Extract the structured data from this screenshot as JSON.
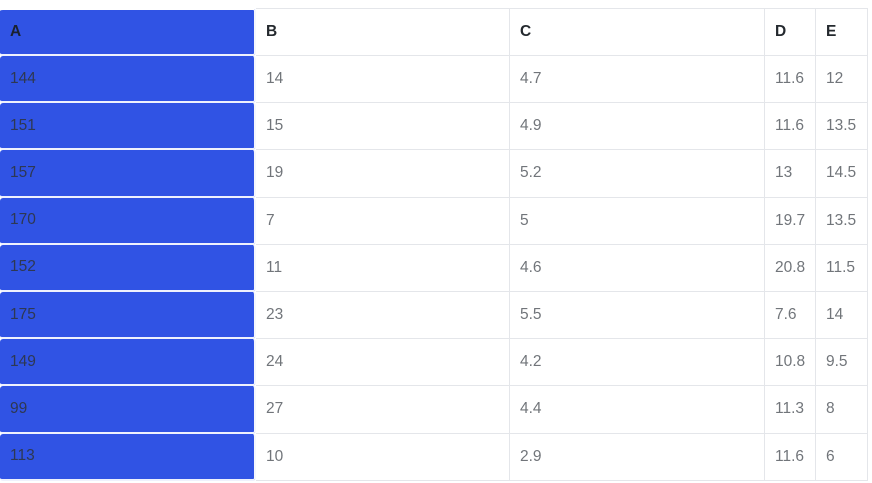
{
  "table": {
    "selected_column": "A",
    "columns": [
      "A",
      "B",
      "C",
      "D",
      "E"
    ],
    "rows": [
      [
        "144",
        "14",
        "4.7",
        "11.6",
        "12"
      ],
      [
        "151",
        "15",
        "4.9",
        "11.6",
        "13.5"
      ],
      [
        "157",
        "19",
        "5.2",
        "13",
        "14.5"
      ],
      [
        "170",
        "7",
        "5",
        "19.7",
        "13.5"
      ],
      [
        "152",
        "11",
        "4.6",
        "20.8",
        "11.5"
      ],
      [
        "175",
        "23",
        "5.5",
        "7.6",
        "14"
      ],
      [
        "149",
        "24",
        "4.2",
        "10.8",
        "9.5"
      ],
      [
        "99",
        "27",
        "4.4",
        "11.3",
        "8"
      ],
      [
        "113",
        "10",
        "2.9",
        "11.6",
        "6"
      ]
    ],
    "colors": {
      "selection": "#3053e4",
      "border": "#e4e6ea",
      "header_text": "#24292e",
      "cell_text": "#71757a",
      "selected_header_text": "#1a2130",
      "selected_cell_text": "#2e3852"
    }
  }
}
